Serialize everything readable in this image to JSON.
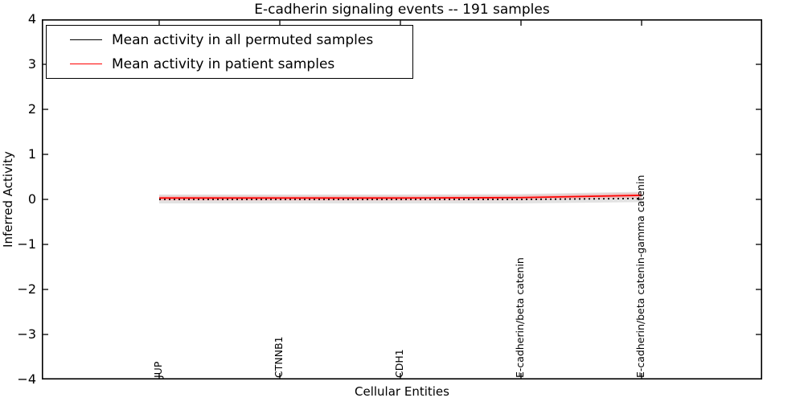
{
  "chart_data": {
    "type": "line",
    "title": "E-cadherin signaling events -- 191 samples",
    "xlabel": "Cellular Entities",
    "ylabel": "Inferred Activity",
    "categories": [
      "JUP",
      "CTNNB1",
      "CDH1",
      "E-cadherin/beta catenin",
      "E-cadherin/beta catenin-gamma catenin"
    ],
    "ylim": [
      -4,
      4
    ],
    "yticks": [
      4,
      3,
      2,
      1,
      0,
      -1,
      -2,
      -3,
      -4
    ],
    "grid": false,
    "legend_position": "upper-left",
    "frame_color": "#000000",
    "series": [
      {
        "name": "Mean activity in all permuted samples",
        "color": "#000000",
        "line_style": "dotted",
        "values": [
          0.0,
          0.0,
          0.0,
          0.0,
          0.02
        ]
      },
      {
        "name": "Mean activity in patient samples",
        "color": "#ff0000",
        "line_style": "solid",
        "values": [
          0.03,
          0.03,
          0.03,
          0.04,
          0.09
        ]
      }
    ],
    "bands": [
      {
        "name": "permuted-samples-std-band",
        "color": "#bfbfbf",
        "opacity": 0.45,
        "upper": [
          0.11,
          0.11,
          0.11,
          0.12,
          0.17
        ],
        "lower": [
          -0.09,
          -0.09,
          -0.09,
          -0.09,
          -0.06
        ]
      },
      {
        "name": "patient-samples-std-band",
        "color": "#ff8080",
        "opacity": 0.3,
        "upper": [
          0.08,
          0.08,
          0.08,
          0.09,
          0.15
        ],
        "lower": [
          -0.03,
          -0.03,
          -0.03,
          -0.02,
          0.03
        ]
      }
    ]
  }
}
